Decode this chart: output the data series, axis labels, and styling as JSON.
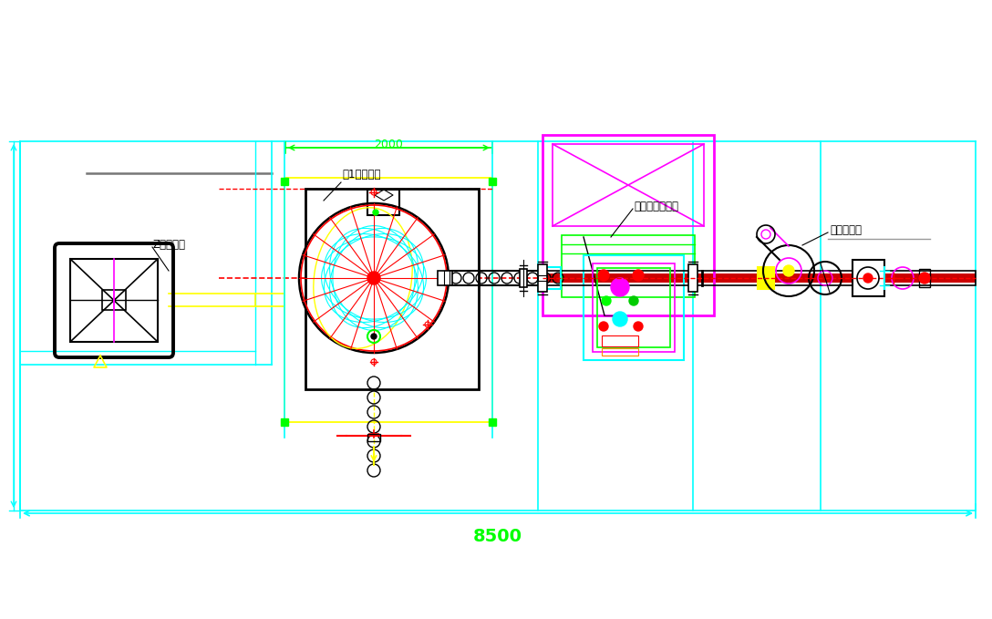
{
  "bg_color": "#ffffff",
  "cyan": "#00ffff",
  "yellow": "#ffff00",
  "magenta": "#ff00ff",
  "red": "#ff0000",
  "green": "#00ff00",
  "black": "#000000",
  "label_z": "Z型提升机",
  "label_granule": "頶1粒灌装机",
  "label_cap": "上盖落盖搞盖机",
  "label_label": "圆瓶贴标机",
  "dim_2000": "2000",
  "dim_8500": "8500"
}
